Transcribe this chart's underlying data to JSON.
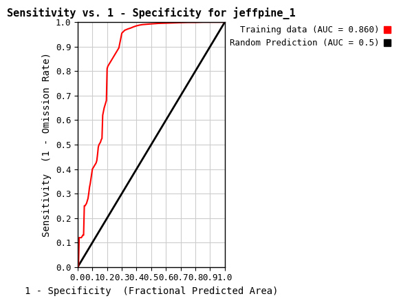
{
  "title": "Sensitivity vs. 1 - Specificity for jeffpine_1",
  "xlabel": "1 - Specificity  (Fractional Predicted Area)",
  "ylabel": "Sensitivity  (1 - Omission Rate)",
  "xlim": [
    0.0,
    1.0
  ],
  "ylim": [
    0.0,
    1.0
  ],
  "xticks": [
    0.0,
    0.1,
    0.2,
    0.3,
    0.4,
    0.5,
    0.6,
    0.7,
    0.8,
    0.9,
    1.0
  ],
  "yticks": [
    0.0,
    0.1,
    0.2,
    0.3,
    0.4,
    0.5,
    0.6,
    0.7,
    0.8,
    0.9,
    1.0
  ],
  "roc_color": "#FF0000",
  "random_color": "#000000",
  "legend_roc": "Training data (AUC = 0.860)",
  "legend_random": "Random Prediction (AUC = 0.5)",
  "background_color": "#ffffff",
  "grid_color": "#cccccc",
  "title_fontsize": 11,
  "label_fontsize": 10,
  "tick_fontsize": 9,
  "legend_fontsize": 9,
  "roc_x": [
    0.0,
    0.005,
    0.01,
    0.015,
    0.02,
    0.025,
    0.03,
    0.035,
    0.04,
    0.045,
    0.05,
    0.055,
    0.06,
    0.065,
    0.07,
    0.075,
    0.08,
    0.085,
    0.09,
    0.095,
    0.1,
    0.105,
    0.11,
    0.115,
    0.12,
    0.125,
    0.13,
    0.135,
    0.14,
    0.145,
    0.15,
    0.155,
    0.16,
    0.165,
    0.17,
    0.175,
    0.18,
    0.185,
    0.19,
    0.195,
    0.2,
    0.205,
    0.21,
    0.215,
    0.22,
    0.225,
    0.23,
    0.235,
    0.24,
    0.245,
    0.25,
    0.26,
    0.27,
    0.28,
    0.3,
    0.32,
    0.34,
    0.36,
    0.38,
    0.4,
    0.42,
    0.44,
    0.46,
    0.48,
    0.5,
    0.55,
    0.6,
    0.65,
    0.7,
    0.75,
    0.8,
    0.85,
    0.9,
    0.95,
    1.0
  ],
  "roc_y": [
    0.0,
    0.0,
    0.12,
    0.12,
    0.12,
    0.12,
    0.125,
    0.13,
    0.13,
    0.25,
    0.25,
    0.255,
    0.26,
    0.27,
    0.28,
    0.3,
    0.325,
    0.34,
    0.36,
    0.38,
    0.4,
    0.405,
    0.41,
    0.415,
    0.42,
    0.425,
    0.435,
    0.46,
    0.49,
    0.5,
    0.505,
    0.51,
    0.52,
    0.525,
    0.62,
    0.635,
    0.65,
    0.66,
    0.67,
    0.68,
    0.81,
    0.82,
    0.825,
    0.83,
    0.835,
    0.84,
    0.845,
    0.85,
    0.855,
    0.86,
    0.865,
    0.875,
    0.885,
    0.895,
    0.955,
    0.967,
    0.972,
    0.976,
    0.981,
    0.985,
    0.988,
    0.99,
    0.991,
    0.992,
    0.993,
    0.995,
    0.996,
    0.997,
    0.998,
    0.999,
    0.999,
    1.0,
    1.0,
    1.0,
    1.0
  ]
}
